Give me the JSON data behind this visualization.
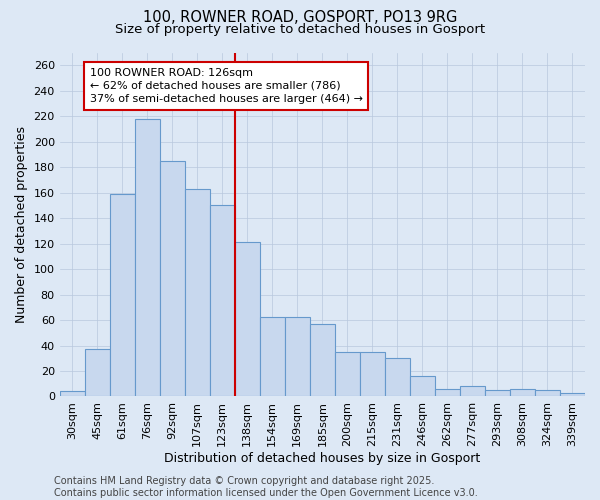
{
  "title": "100, ROWNER ROAD, GOSPORT, PO13 9RG",
  "subtitle": "Size of property relative to detached houses in Gosport",
  "xlabel": "Distribution of detached houses by size in Gosport",
  "ylabel": "Number of detached properties",
  "categories": [
    "30sqm",
    "45sqm",
    "61sqm",
    "76sqm",
    "92sqm",
    "107sqm",
    "123sqm",
    "138sqm",
    "154sqm",
    "169sqm",
    "185sqm",
    "200sqm",
    "215sqm",
    "231sqm",
    "246sqm",
    "262sqm",
    "277sqm",
    "293sqm",
    "308sqm",
    "324sqm",
    "339sqm"
  ],
  "values": [
    4,
    37,
    159,
    218,
    185,
    163,
    150,
    121,
    62,
    62,
    57,
    35,
    35,
    30,
    16,
    6,
    8,
    5,
    6,
    5,
    3
  ],
  "bar_color": "#c8d8ee",
  "bar_edge_color": "#6699cc",
  "property_line_index": 6,
  "property_label": "100 ROWNER ROAD: 126sqm",
  "annotation_line1": "← 62% of detached houses are smaller (786)",
  "annotation_line2": "37% of semi-detached houses are larger (464) →",
  "annotation_box_color": "#ffffff",
  "annotation_box_edge": "#cc0000",
  "vline_color": "#cc0000",
  "ylim": [
    0,
    270
  ],
  "yticks": [
    0,
    20,
    40,
    60,
    80,
    100,
    120,
    140,
    160,
    180,
    200,
    220,
    240,
    260
  ],
  "grid_color": "#b8c8de",
  "background_color": "#dde8f5",
  "plot_bg_color": "#dde8f5",
  "footer_line1": "Contains HM Land Registry data © Crown copyright and database right 2025.",
  "footer_line2": "Contains public sector information licensed under the Open Government Licence v3.0.",
  "title_fontsize": 10.5,
  "subtitle_fontsize": 9.5,
  "axis_label_fontsize": 9,
  "tick_fontsize": 8,
  "footer_fontsize": 7,
  "annotation_fontsize": 8
}
